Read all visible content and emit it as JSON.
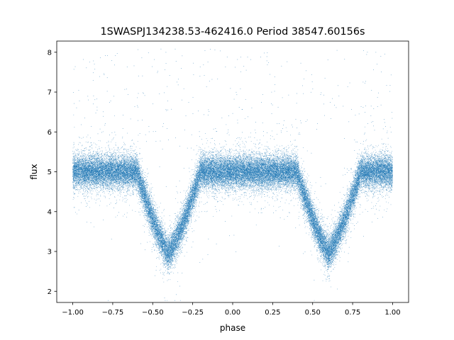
{
  "chart_data": {
    "type": "scatter",
    "title": "1SWASPJ134238.53-462416.0 Period 38547.60156s",
    "xlabel": "phase",
    "ylabel": "flux",
    "xlim": [
      -1.1,
      1.1
    ],
    "ylim": [
      1.72,
      8.28
    ],
    "xticks": [
      -1.0,
      -0.75,
      -0.5,
      -0.25,
      0.0,
      0.25,
      0.5,
      0.75,
      1.0
    ],
    "xtick_labels": [
      "−1.00",
      "−0.75",
      "−0.50",
      "−0.25",
      "0.00",
      "0.25",
      "0.50",
      "0.75",
      "1.00"
    ],
    "yticks": [
      2,
      3,
      4,
      5,
      6,
      7,
      8
    ],
    "ytick_labels": [
      "2",
      "3",
      "4",
      "5",
      "6",
      "7",
      "8"
    ],
    "grid": false,
    "point_color": "#1f77b4",
    "series": [
      {
        "phase_range": [
          -1.0,
          1.0
        ],
        "baseline_flux": 5.0,
        "baseline_scatter": 0.2,
        "eclipse_centers": [
          -0.4,
          0.6
        ],
        "eclipse_min_flux": 2.9,
        "eclipse_halfwidth": 0.2,
        "point_count": 45000
      }
    ]
  }
}
